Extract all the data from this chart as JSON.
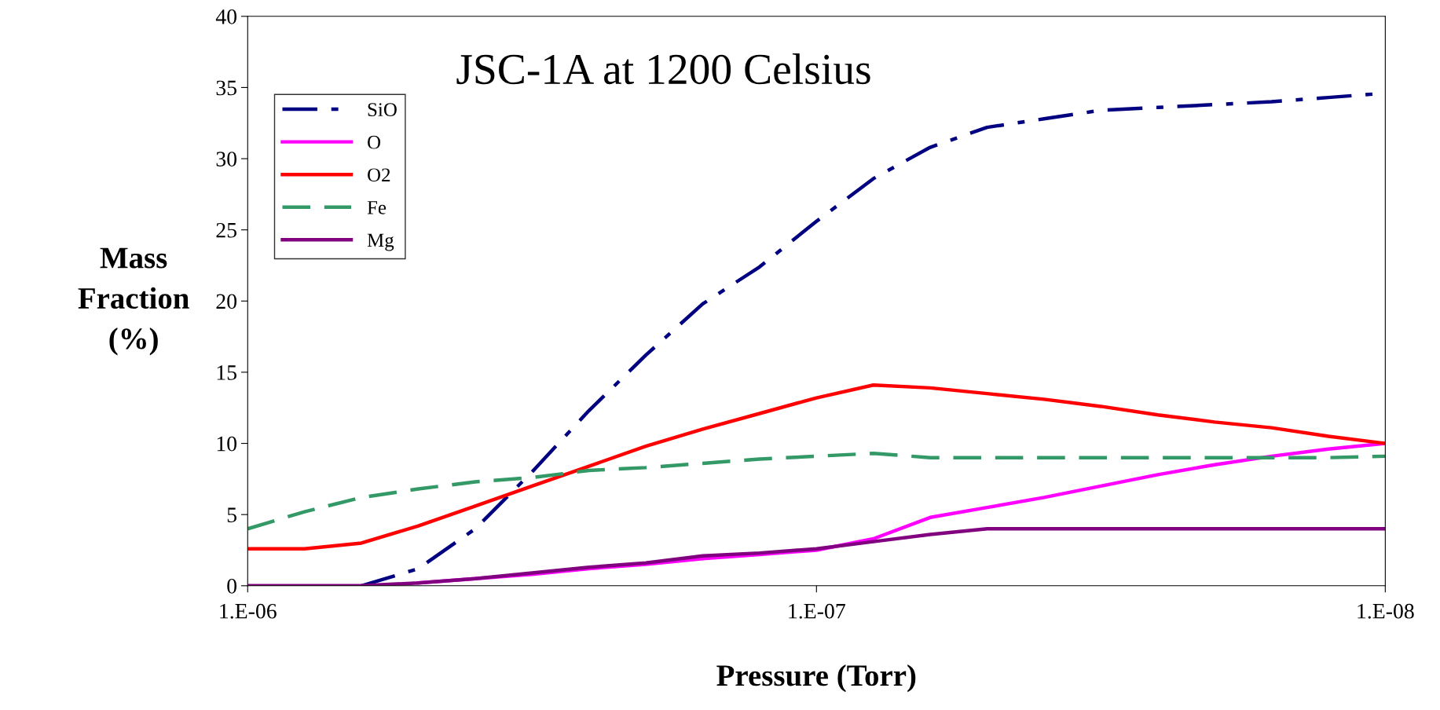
{
  "chart_data": {
    "type": "line",
    "title": "JSC-1A at 1200 Celsius",
    "xlabel": "Pressure (Torr)",
    "ylabel": "Mass\nFraction\n(%)",
    "categories": [
      "1.E-06",
      null,
      null,
      null,
      null,
      null,
      null,
      null,
      null,
      null,
      "1.E-07",
      null,
      null,
      null,
      null,
      null,
      null,
      null,
      null,
      null,
      "1.E-08"
    ],
    "ylim": [
      0,
      40
    ],
    "yticks": [
      0,
      5,
      10,
      15,
      20,
      25,
      30,
      35,
      40
    ],
    "grid": false,
    "legend": "top left",
    "marker": "none",
    "series": [
      {
        "name": "SiO",
        "color": "#000080",
        "line_style": "dashdot",
        "values": [
          null,
          null,
          0,
          1.2,
          4.0,
          8.0,
          12.3,
          16.2,
          19.8,
          22.4,
          25.6,
          28.6,
          30.8,
          32.2,
          32.8,
          33.4,
          33.6,
          33.8,
          34.0,
          34.3,
          34.6
        ]
      },
      {
        "name": "O",
        "color": "#ff00ff",
        "line_style": "solid",
        "values": [
          null,
          null,
          null,
          0.2,
          0.5,
          0.8,
          1.2,
          1.5,
          1.9,
          2.2,
          2.5,
          3.3,
          4.8,
          5.5,
          6.2,
          7.0,
          7.8,
          8.5,
          9.1,
          9.6,
          10.0
        ]
      },
      {
        "name": "O2",
        "color": "#ff0000",
        "line_style": "solid",
        "values": [
          2.6,
          2.6,
          3.0,
          4.2,
          5.6,
          7.0,
          8.4,
          9.8,
          11.0,
          12.1,
          13.2,
          14.1,
          13.9,
          13.5,
          13.1,
          12.6,
          12.0,
          11.5,
          11.1,
          10.5,
          10.0
        ]
      },
      {
        "name": "Fe",
        "color": "#339966",
        "line_style": "dashed",
        "values": [
          4.0,
          5.2,
          6.2,
          6.8,
          7.3,
          7.6,
          8.1,
          8.3,
          8.6,
          8.9,
          9.1,
          9.3,
          9.0,
          9.0,
          9.0,
          9.0,
          9.0,
          9.0,
          9.0,
          9.0,
          9.1
        ]
      },
      {
        "name": "Mg",
        "color": "#800080",
        "line_style": "solid",
        "values": [
          0,
          0,
          0,
          0.2,
          0.5,
          0.9,
          1.3,
          1.6,
          2.1,
          2.3,
          2.6,
          3.1,
          3.6,
          4.0,
          4.0,
          4.0,
          4.0,
          4.0,
          4.0,
          4.0,
          4.0
        ]
      }
    ]
  }
}
